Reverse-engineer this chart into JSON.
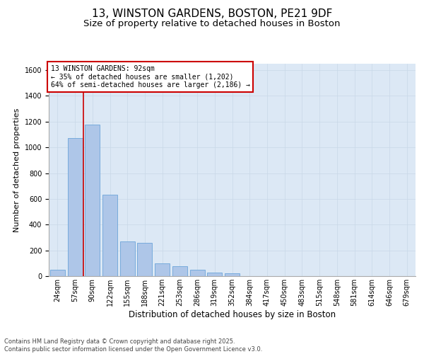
{
  "title_line1": "13, WINSTON GARDENS, BOSTON, PE21 9DF",
  "title_line2": "Size of property relative to detached houses in Boston",
  "xlabel": "Distribution of detached houses by size in Boston",
  "ylabel": "Number of detached properties",
  "categories": [
    "24sqm",
    "57sqm",
    "90sqm",
    "122sqm",
    "155sqm",
    "188sqm",
    "221sqm",
    "253sqm",
    "286sqm",
    "319sqm",
    "352sqm",
    "384sqm",
    "417sqm",
    "450sqm",
    "483sqm",
    "515sqm",
    "548sqm",
    "581sqm",
    "614sqm",
    "646sqm",
    "679sqm"
  ],
  "values": [
    50,
    1075,
    1175,
    635,
    270,
    260,
    100,
    75,
    50,
    30,
    20,
    0,
    0,
    0,
    0,
    0,
    0,
    0,
    0,
    0,
    0
  ],
  "bar_color": "#aec6e8",
  "bar_edgecolor": "#5b9bd5",
  "vline_color": "#cc0000",
  "annotation_text": "13 WINSTON GARDENS: 92sqm\n← 35% of detached houses are smaller (1,202)\n64% of semi-detached houses are larger (2,186) →",
  "annotation_box_edgecolor": "#cc0000",
  "annotation_box_facecolor": "#ffffff",
  "ylim": [
    0,
    1650
  ],
  "yticks": [
    0,
    200,
    400,
    600,
    800,
    1000,
    1200,
    1400,
    1600
  ],
  "grid_color": "#c8d8e8",
  "plot_background": "#dce8f5",
  "footer_line1": "Contains HM Land Registry data © Crown copyright and database right 2025.",
  "footer_line2": "Contains public sector information licensed under the Open Government Licence v3.0.",
  "title_fontsize": 11,
  "subtitle_fontsize": 9.5,
  "xlabel_fontsize": 8.5,
  "ylabel_fontsize": 8,
  "tick_fontsize": 7,
  "annotation_fontsize": 7,
  "footer_fontsize": 6
}
